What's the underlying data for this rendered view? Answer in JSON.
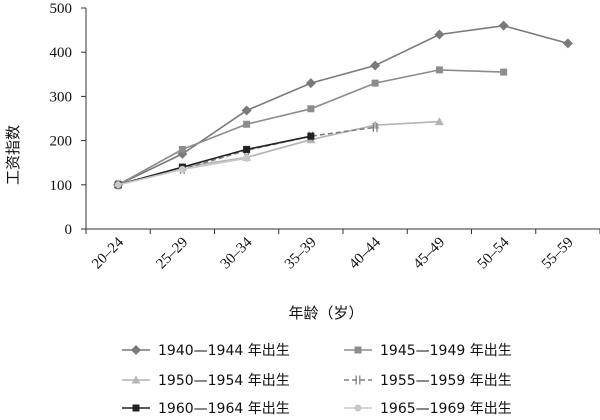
{
  "chart_data": {
    "type": "line",
    "ylabel": "工资指数",
    "xlabel": "年龄（岁）",
    "categories": [
      "20–24",
      "25–29",
      "30–34",
      "35–39",
      "40–44",
      "45–49",
      "50–54",
      "55–59"
    ],
    "ylim": [
      0,
      500
    ],
    "yticks": [
      0,
      100,
      200,
      300,
      400,
      500
    ],
    "grid": false,
    "legend_position": "bottom",
    "series": [
      {
        "name": "1940—1944 年出生",
        "values": [
          100,
          170,
          268,
          330,
          370,
          440,
          460,
          420
        ],
        "color": "#7a7a7a",
        "marker": "diamond",
        "dash": "solid"
      },
      {
        "name": "1945—1949 年出生",
        "values": [
          100,
          180,
          237,
          272,
          330,
          360,
          355,
          null
        ],
        "color": "#8c8c8c",
        "marker": "square",
        "dash": "solid"
      },
      {
        "name": "1950—1954 年出生",
        "values": [
          100,
          140,
          162,
          202,
          235,
          243,
          null,
          null
        ],
        "color": "#b4b4b4",
        "marker": "triangle",
        "dash": "solid"
      },
      {
        "name": "1955—1959 年出生",
        "values": [
          100,
          135,
          178,
          210,
          230,
          null,
          null,
          null
        ],
        "color": "#808080",
        "marker": "bars",
        "dash": "dashed"
      },
      {
        "name": "1960—1964 年出生",
        "values": [
          100,
          140,
          180,
          210,
          null,
          null,
          null,
          null
        ],
        "color": "#222222",
        "marker": "square",
        "dash": "solid"
      },
      {
        "name": "1965—1969 年出生",
        "values": [
          100,
          135,
          160,
          null,
          null,
          null,
          null,
          null
        ],
        "color": "#c8c8c8",
        "marker": "circle",
        "dash": "solid"
      }
    ]
  }
}
